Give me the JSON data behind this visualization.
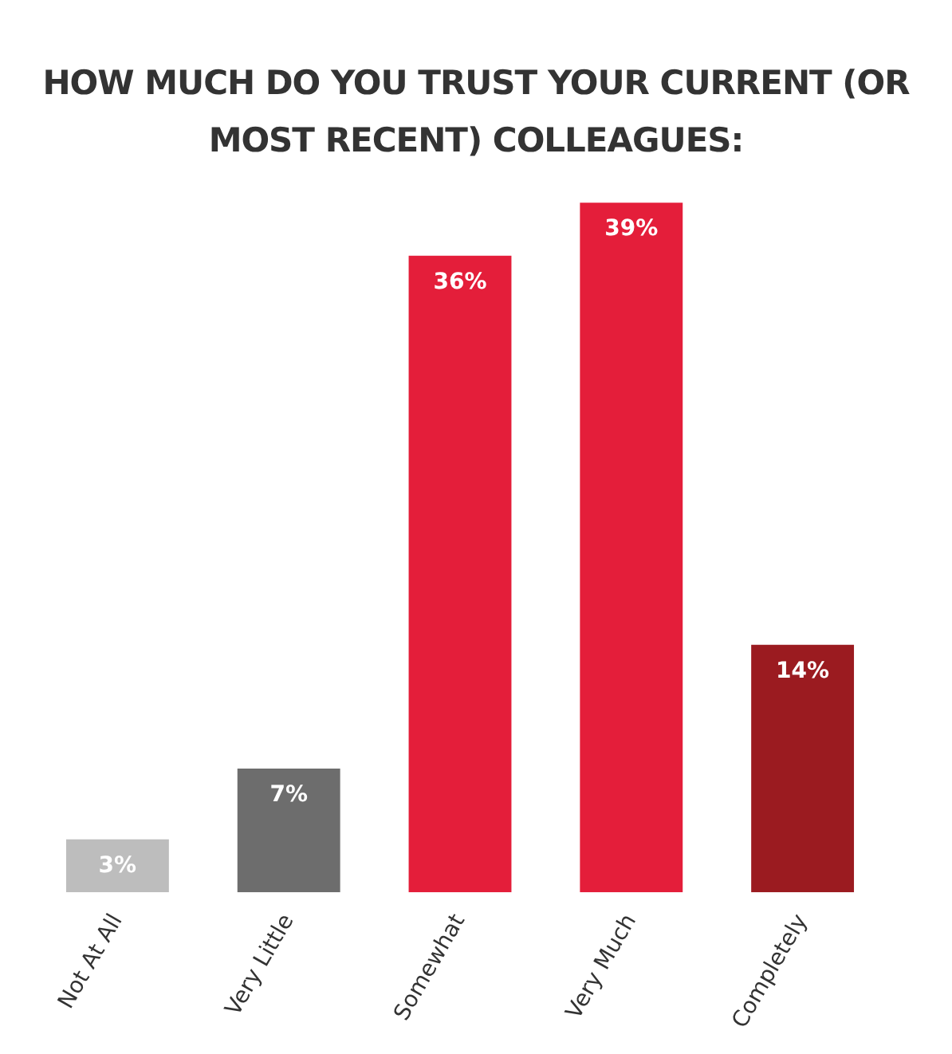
{
  "chart_data": {
    "type": "bar",
    "title": "HOW MUCH DO YOU TRUST YOUR CURRENT (OR MOST RECENT) COLLEAGUES:",
    "categories": [
      "Not At All",
      "Very Little",
      "Somewhat",
      "Very Much",
      "Completely"
    ],
    "values": [
      3,
      7,
      36,
      39,
      14
    ],
    "colors": [
      "#bdbdbd",
      "#6d6d6d",
      "#e41e3a",
      "#e41e3a",
      "#9b1b20"
    ],
    "value_labels": [
      "3%",
      "7%",
      "36%",
      "39%",
      "14%"
    ],
    "grid": false,
    "legend": false
  }
}
